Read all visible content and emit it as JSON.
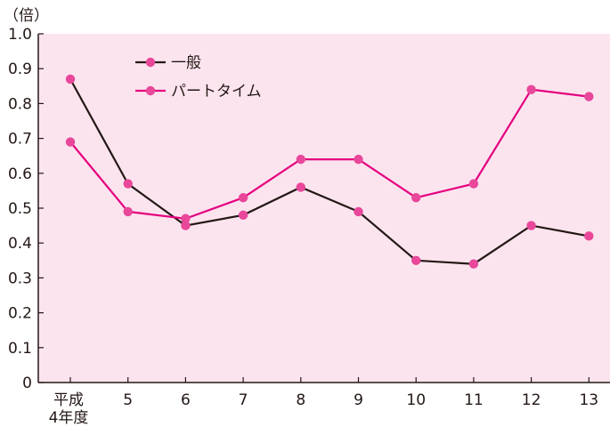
{
  "chart_data": {
    "type": "line",
    "ylabel": "（倍）",
    "xlabel": "",
    "ylim": [
      0,
      1.0
    ],
    "yticks": [
      "0",
      "0.1",
      "0.2",
      "0.3",
      "0.4",
      "0.5",
      "0.6",
      "0.7",
      "0.8",
      "0.9",
      "1.0"
    ],
    "categories": [
      "平成4年度",
      "5",
      "6",
      "7",
      "8",
      "9",
      "10",
      "11",
      "12",
      "13"
    ],
    "category_lines": [
      [
        "平成",
        "4年度"
      ],
      [
        "5"
      ],
      [
        "6"
      ],
      [
        "7"
      ],
      [
        "8"
      ],
      [
        "9"
      ],
      [
        "10"
      ],
      [
        "11"
      ],
      [
        "12"
      ],
      [
        "13"
      ]
    ],
    "series": [
      {
        "name": "一般",
        "color": "#231815",
        "marker_color": "#e8479a",
        "values": [
          0.87,
          0.57,
          0.45,
          0.48,
          0.56,
          0.49,
          0.35,
          0.34,
          0.45,
          0.42
        ]
      },
      {
        "name": "パートタイム",
        "color": "#e4007f",
        "marker_color": "#e8479a",
        "values": [
          0.69,
          0.49,
          0.47,
          0.53,
          0.64,
          0.64,
          0.53,
          0.57,
          0.84,
          0.82
        ]
      }
    ],
    "legend_position": "top-left",
    "grid": false,
    "background": "#fce4ef"
  }
}
